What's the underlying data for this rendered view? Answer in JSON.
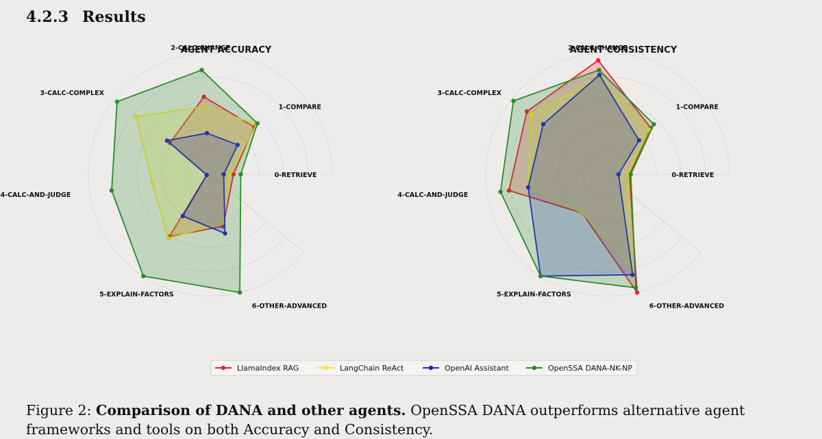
{
  "section": {
    "number": "4.2.3",
    "title": "Results"
  },
  "caption": {
    "label": "Figure 2:",
    "bold": "Comparison of DANA and other agents.",
    "text": "OpenSSA DANA outperforms alternative agent frameworks and tools on both Accuracy and Consistency."
  },
  "colors": {
    "LlamaIndex RAG": "#e8202a",
    "LangChain ReAct": "#f2e62a",
    "OpenAI Assistant": "#1f1fd6",
    "OpenSSA DANA-NK-NP": "#2a8a2a"
  },
  "chart_data": [
    {
      "type": "radar",
      "title": "AGENT ACCURACY",
      "axes": [
        "0-RETRIEVE",
        "1-COMPARE",
        "2-CALC-CHANGE",
        "3-CALC-COMPLEX",
        "4-CALC-AND-JUDGE",
        "5-EXPLAIN-FACTORS",
        "6-OTHER-ADVANCED"
      ],
      "rmax": 1.0,
      "series": [
        {
          "name": "LlamaIndex RAG",
          "values": [
            0.19,
            0.53,
            0.64,
            0.42,
            0.03,
            0.61,
            0.44
          ]
        },
        {
          "name": "LangChain ReAct",
          "values": [
            0.16,
            0.56,
            0.56,
            0.77,
            0.48,
            0.63,
            0.41
          ]
        },
        {
          "name": "OpenAI Assistant",
          "values": [
            0.11,
            0.33,
            0.34,
            0.45,
            0.03,
            0.41,
            0.5
          ]
        },
        {
          "name": "OpenSSA DANA-NK-NP",
          "values": [
            0.25,
            0.57,
            0.86,
            0.97,
            0.82,
            1.0,
            1.0
          ]
        }
      ]
    },
    {
      "type": "radar",
      "title": "AGENT CONSISTENCY",
      "axes": [
        "0-RETRIEVE",
        "1-COMPARE",
        "2-CALC-CHANGE",
        "3-CALC-COMPLEX",
        "4-CALC-AND-JUDGE",
        "5-EXPLAIN-FACTORS",
        "6-OTHER-ADVANCED"
      ],
      "rmax": 1.0,
      "series": [
        {
          "name": "LlamaIndex RAG",
          "values": [
            0.18,
            0.52,
            0.94,
            0.84,
            0.82,
            0.38,
            1.0
          ]
        },
        {
          "name": "LangChain ReAct",
          "values": [
            0.17,
            0.5,
            0.8,
            0.8,
            0.66,
            0.38,
            0.78
          ]
        },
        {
          "name": "OpenAI Assistant",
          "values": [
            0.09,
            0.38,
            0.82,
            0.67,
            0.66,
            1.0,
            0.85
          ]
        },
        {
          "name": "OpenSSA DANA-NK-NP",
          "values": [
            0.19,
            0.56,
            0.86,
            0.98,
            0.89,
            1.0,
            0.96
          ]
        }
      ]
    }
  ],
  "legend": [
    "LlamaIndex RAG",
    "LangChain ReAct",
    "OpenAI Assistant",
    "OpenSSA DANA-NK-NP"
  ]
}
